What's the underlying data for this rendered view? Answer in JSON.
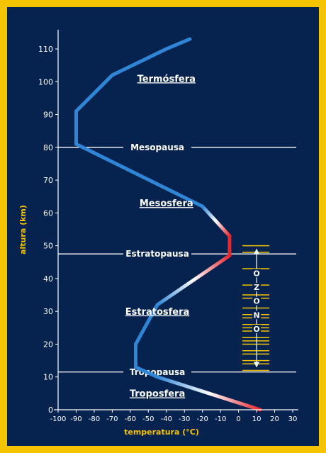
{
  "chart_data": {
    "type": "line",
    "xlabel": "temperatura (°C)",
    "ylabel": "altura (km)",
    "xlim": [
      -100,
      30
    ],
    "ylim": [
      0,
      115
    ],
    "x_ticks": [
      -100,
      -90,
      -80,
      -70,
      -60,
      -50,
      -40,
      -30,
      -20,
      -10,
      0,
      10,
      20,
      30
    ],
    "y_ticks": [
      0,
      10,
      20,
      30,
      40,
      50,
      60,
      70,
      80,
      90,
      100,
      110
    ],
    "series": [
      {
        "points": [
          {
            "x": 12,
            "y": 0
          },
          {
            "x": -45,
            "y": 10
          },
          {
            "x": -57,
            "y": 13
          },
          {
            "x": -57,
            "y": 20
          },
          {
            "x": -45,
            "y": 32
          },
          {
            "x": -5,
            "y": 47
          },
          {
            "x": -5,
            "y": 53
          },
          {
            "x": -20,
            "y": 62
          },
          {
            "x": -90,
            "y": 81
          },
          {
            "x": -90,
            "y": 91
          },
          {
            "x": -70,
            "y": 102
          },
          {
            "x": -40,
            "y": 110
          },
          {
            "x": -27,
            "y": 113
          }
        ]
      }
    ],
    "boundaries": [
      {
        "label": "Mesopausa",
        "y": 80
      },
      {
        "label": "Estratopausa",
        "y": 47.5
      },
      {
        "label": "Tropopausa",
        "y": 11.5
      }
    ],
    "layers": [
      {
        "label": "Termósfera",
        "y": 100,
        "x": -40
      },
      {
        "label": "Mesosfera",
        "y": 62,
        "x": -40
      },
      {
        "label": "Estratosfera",
        "y": 29,
        "x": -45
      },
      {
        "label": "Troposfera",
        "y": 4,
        "x": -45
      }
    ],
    "ozone": {
      "letters": [
        "O",
        "Z",
        "O",
        "N",
        "O"
      ],
      "x": 10,
      "y_top": 50,
      "y_bottom": 12,
      "band_levels": [
        50,
        48,
        43,
        38,
        35,
        34,
        31,
        29,
        28,
        26,
        25,
        24,
        22,
        21,
        20,
        18,
        17,
        15,
        14,
        12
      ]
    },
    "colors": {
      "background": "#06234f",
      "frame": "#f5c400",
      "line": "#2f86d6",
      "warm": "#e8262e",
      "ozone_band": "#f5c400",
      "axis_label": "#f5c400",
      "text": "#ffffff"
    }
  }
}
